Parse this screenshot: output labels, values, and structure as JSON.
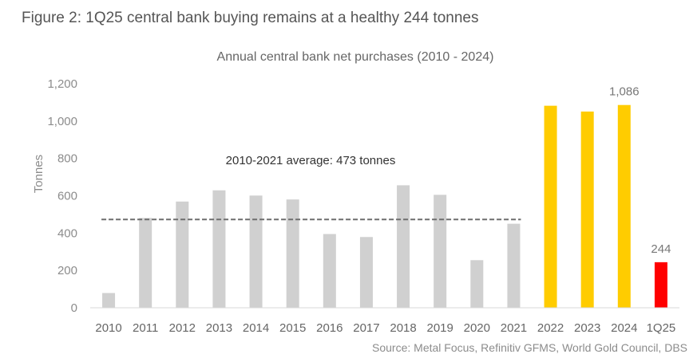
{
  "figure_title": "Figure 2: 1Q25 central bank buying remains at a healthy 244 tonnes",
  "source": "Source:  Metal Focus, Refinitiv GFMS, World Gold Council, DBS",
  "chart_data": {
    "type": "bar",
    "title": "Annual central bank net purchases (2010 - 2024)",
    "xlabel": "",
    "ylabel": "Tonnes",
    "ylim": [
      0,
      1200
    ],
    "yticks": [
      0,
      200,
      400,
      600,
      800,
      1000,
      1200
    ],
    "ytick_labels": [
      "0",
      "200",
      "400",
      "600",
      "800",
      "1,000",
      "1,200"
    ],
    "categories": [
      "2010",
      "2011",
      "2012",
      "2013",
      "2014",
      "2015",
      "2016",
      "2017",
      "2018",
      "2019",
      "2020",
      "2021",
      "2022",
      "2023",
      "2024",
      "1Q25"
    ],
    "values": [
      79,
      481,
      569,
      629,
      601,
      580,
      395,
      379,
      656,
      605,
      255,
      450,
      1082,
      1051,
      1086,
      244
    ],
    "bar_colors": [
      "#d0d0d0",
      "#d0d0d0",
      "#d0d0d0",
      "#d0d0d0",
      "#d0d0d0",
      "#d0d0d0",
      "#d0d0d0",
      "#d0d0d0",
      "#d0d0d0",
      "#d0d0d0",
      "#d0d0d0",
      "#d0d0d0",
      "#ffcc00",
      "#ffcc00",
      "#ffcc00",
      "#ff0000"
    ],
    "data_labels": [
      {
        "category": "2024",
        "text": "1,086"
      },
      {
        "category": "1Q25",
        "text": "244"
      }
    ],
    "average_line": {
      "value": 473,
      "from": "2010",
      "to": "2021",
      "label": "2010-2021 average: 473 tonnes"
    },
    "grid": false
  }
}
